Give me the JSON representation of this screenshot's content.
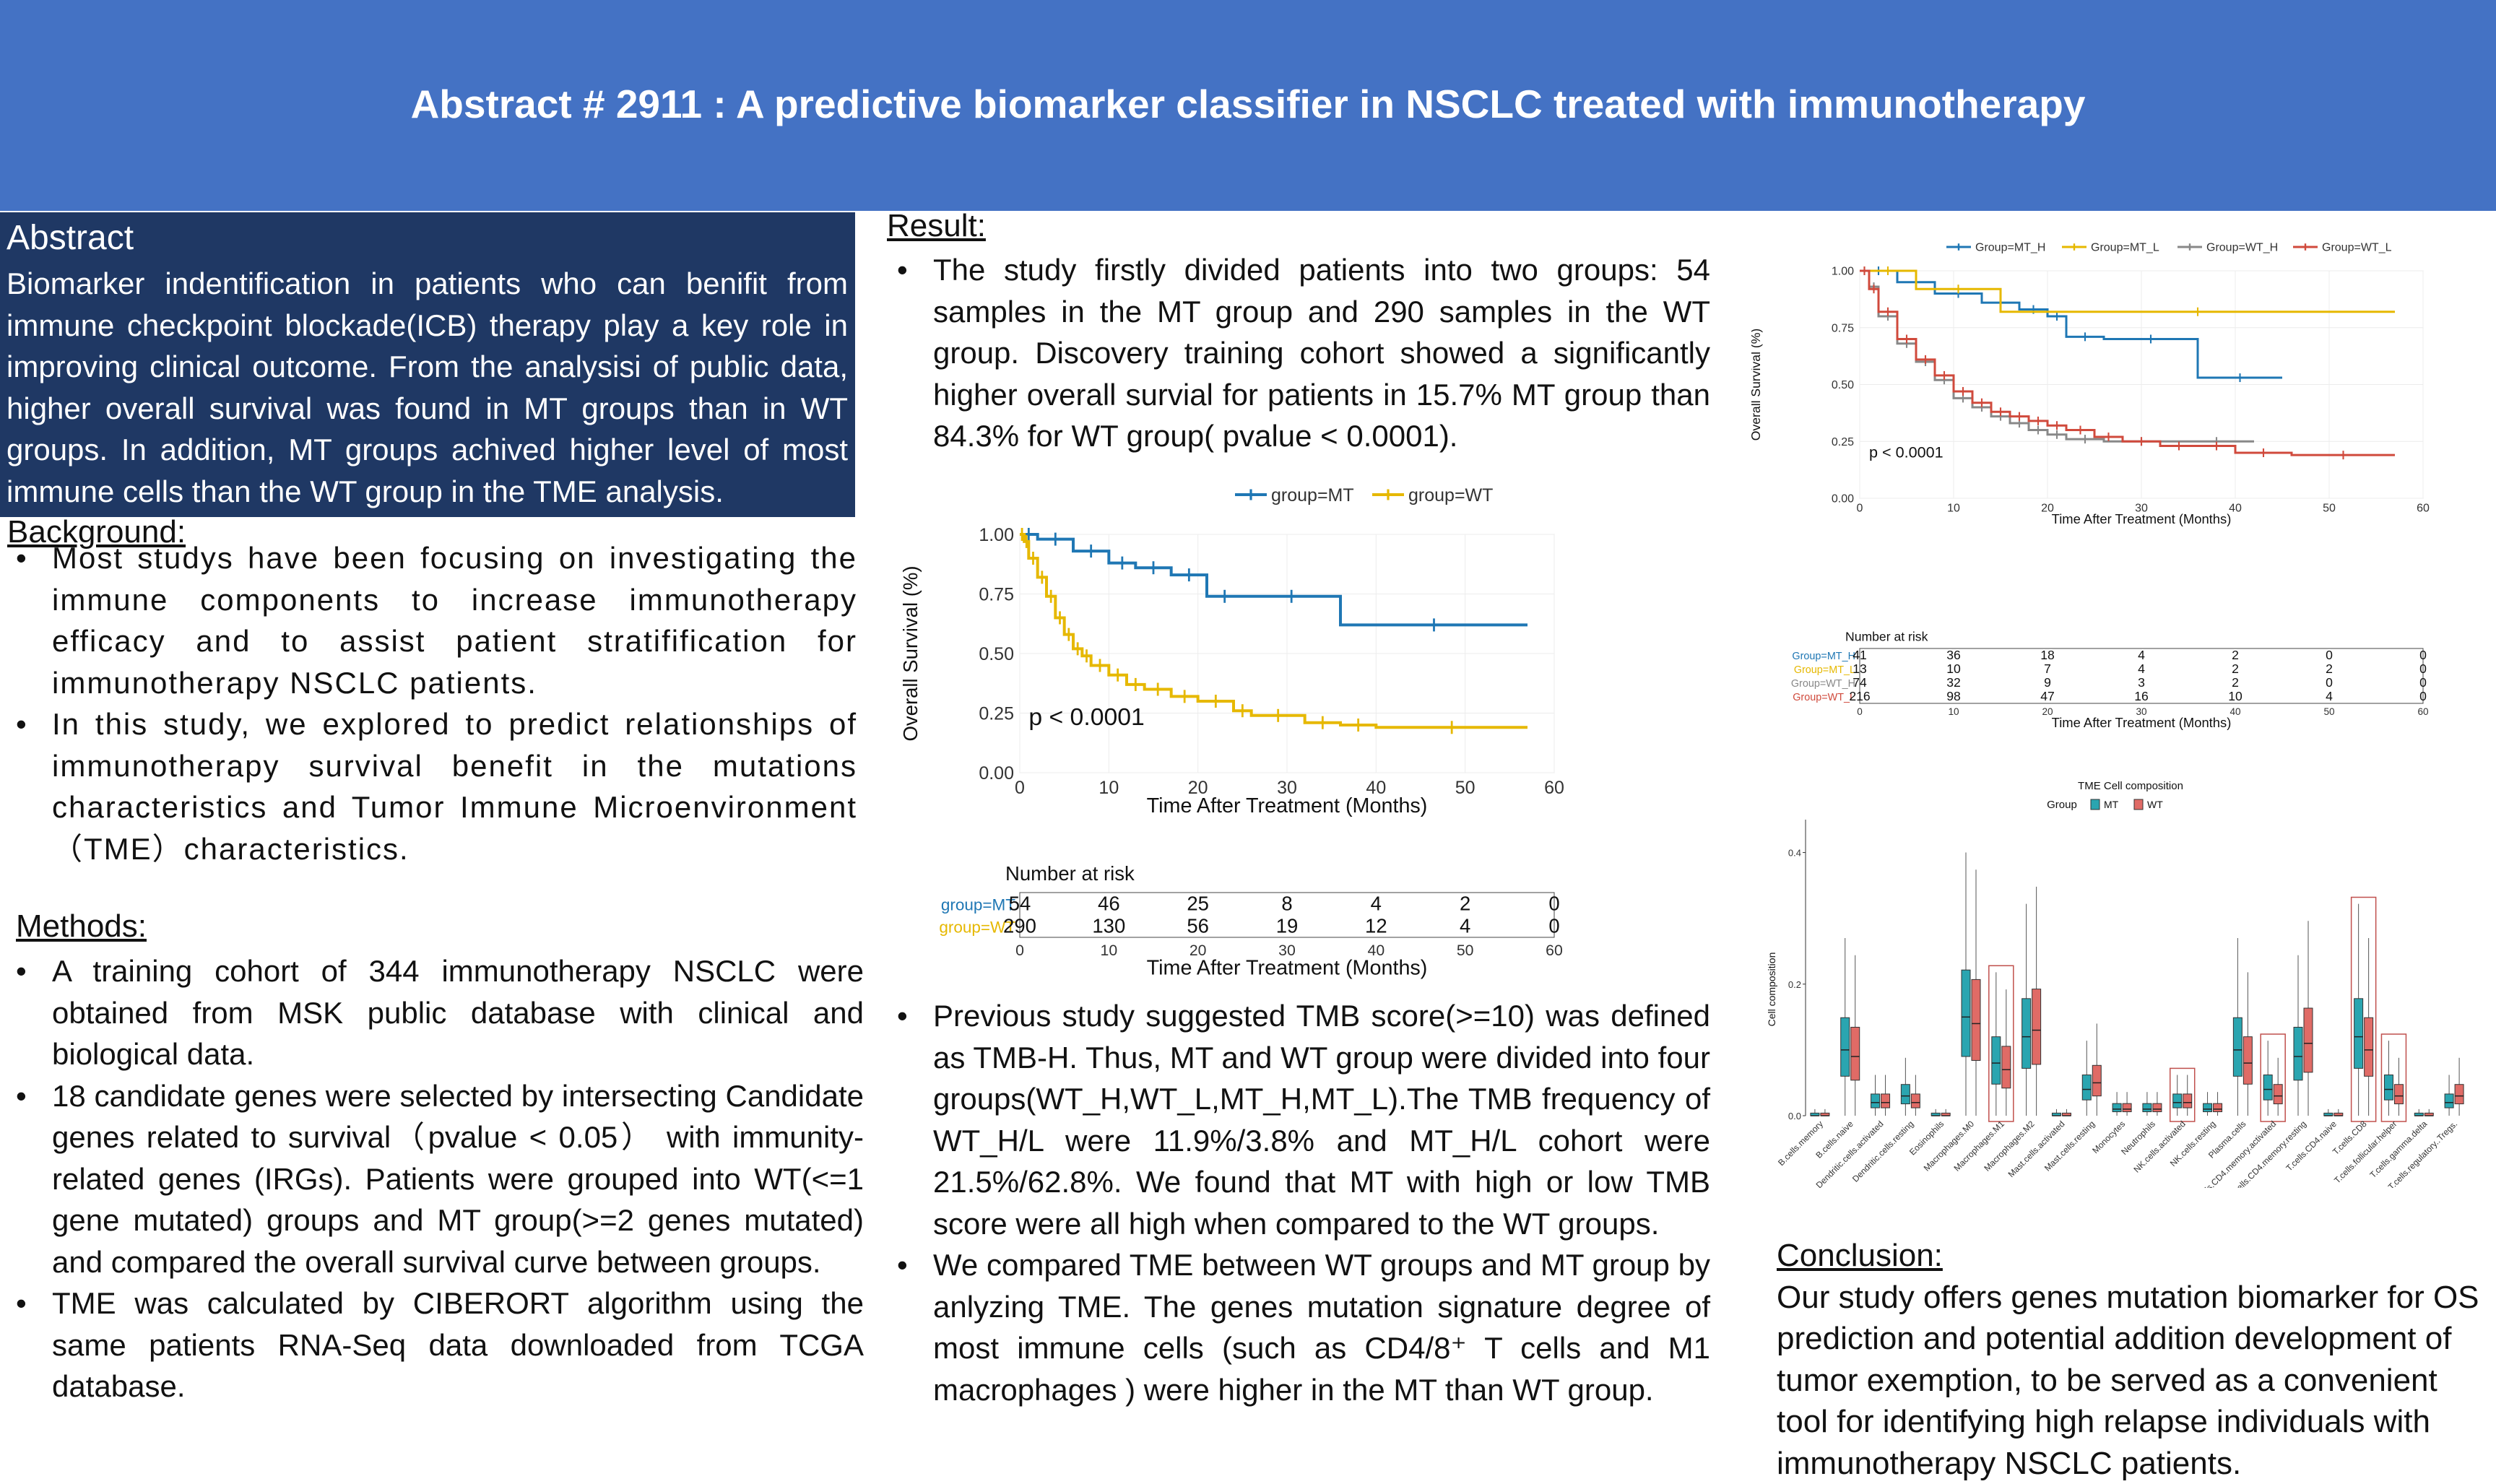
{
  "header": {
    "title": "Abstract # 2911 : A predictive biomarker classifier in NSCLC treated with immunotherapy"
  },
  "abstract": {
    "title": "Abstract",
    "body": "Biomarker indentification in patients who can benifit from immune checkpoint blockade(ICB) therapy play a key role in improving clinical outcome. From the analysisi of public data, higher overall survival was found in MT groups than in WT groups. In addition, MT groups achived higher level of most immune cells than the WT group in the TME analysis."
  },
  "background": {
    "title": "Background:",
    "items": [
      "Most studys have been focusing on investigating the immune components to increase immunotherapy efficacy and to assist patient stratifification for immunotherapy NSCLC patients.",
      "In this study, we explored to predict relationships of immunotherapy survival benefit in the mutations characteristics and Tumor Immune Microenvironment （TME）characteristics."
    ]
  },
  "methods": {
    "title": "Methods:",
    "items": [
      "A training cohort of 344 immunotherapy NSCLC were obtained from MSK public database with clinical and biological data.",
      "18 candidate genes were selected by intersecting Candidate genes related to survival（pvalue < 0.05） with immunity-related genes (IRGs). Patients were grouped into WT(<=1 gene mutated) groups and MT group(>=2 genes mutated) and compared the overall survival curve between groups.",
      "TME was calculated by CIBERORT algorithm using the same patients RNA-Seq data downloaded from TCGA database."
    ]
  },
  "result": {
    "title": "Result:",
    "items_top": [
      "The study firstly divided patients into two groups: 54 samples in the MT group and 290 samples in the WT group. Discovery training cohort showed a significantly higher overall survial for patients in 15.7% MT group than 84.3% for WT group( pvalue < 0.0001)."
    ],
    "items_bottom": [
      "Previous study suggested TMB score(>=10) was defined as TMB-H. Thus, MT and WT group were divided into four groups(WT_H,WT_L,MT_H,MT_L).The TMB frequency of WT_H/L were 11.9%/3.8% and MT_H/L cohort were 21.5%/62.8%. We found that MT with high or low TMB score were all high when compared to the WT groups.",
      " We compared TME between WT groups and MT group by anlyzing TME. The genes mutation signature degree of most immune cells (such as CD4/8⁺ T cells and M1 macrophages ) were higher in the MT  than WT group."
    ]
  },
  "conclusion": {
    "title": "Conclusion:",
    "body": "Our study offers genes mutation biomarker for OS prediction and potential addition development of tumor exemption, to be served as a convenient tool for identifying high relapse individuals with immunotherapy NSCLC patients."
  },
  "chart_data": [
    {
      "type": "line",
      "chart": "kaplan-meier",
      "xlabel": "Time After Treatment (Months)",
      "ylabel": "Overall Survival (%)",
      "xlim": [
        0,
        60
      ],
      "ylim": [
        0,
        1
      ],
      "xticks": [
        "0",
        "10",
        "20",
        "30",
        "40",
        "50",
        "60"
      ],
      "yticks": [
        "0.00",
        "0.25",
        "0.50",
        "0.75",
        "1.00"
      ],
      "legend": "top",
      "annotation": "p < 0.0001",
      "series": [
        {
          "name": "group=MT",
          "color": "#1f77b4",
          "x": [
            0,
            2,
            6,
            10,
            13,
            17,
            21,
            25,
            36,
            57
          ],
          "y": [
            1.0,
            0.98,
            0.93,
            0.88,
            0.86,
            0.83,
            0.74,
            0.74,
            0.62,
            0.62
          ]
        },
        {
          "name": "group=WT",
          "color": "#e6b800",
          "x": [
            0,
            0.5,
            1,
            2,
            3,
            4,
            5,
            6,
            7,
            8,
            10,
            12,
            14,
            17,
            20,
            24,
            26,
            32,
            36,
            40,
            57
          ],
          "y": [
            1.0,
            0.97,
            0.9,
            0.82,
            0.74,
            0.65,
            0.58,
            0.52,
            0.49,
            0.45,
            0.41,
            0.37,
            0.35,
            0.32,
            0.3,
            0.26,
            0.24,
            0.21,
            0.2,
            0.19,
            0.19
          ]
        }
      ],
      "risk_table": {
        "title": "Number at risk",
        "times": [
          "0",
          "10",
          "20",
          "30",
          "40",
          "50",
          "60"
        ],
        "rows": [
          {
            "name": "group=MT",
            "color": "#1f77b4",
            "values": [
              "54",
              "46",
              "25",
              "8",
              "4",
              "2",
              "0"
            ]
          },
          {
            "name": "group=WT",
            "color": "#e6b800",
            "values": [
              "290",
              "130",
              "56",
              "19",
              "12",
              "4",
              "0"
            ]
          }
        ]
      }
    },
    {
      "type": "line",
      "chart": "kaplan-meier",
      "xlabel": "Time After Treatment (Months)",
      "ylabel": "Overall Survival (%)",
      "xlim": [
        0,
        60
      ],
      "ylim": [
        0,
        1
      ],
      "xticks": [
        "0",
        "10",
        "20",
        "30",
        "40",
        "50",
        "60"
      ],
      "yticks": [
        "0.00",
        "0.25",
        "0.50",
        "0.75",
        "1.00"
      ],
      "legend": "top",
      "annotation": "p < 0.0001",
      "series": [
        {
          "name": "Group=MT_H",
          "color": "#1f77b4",
          "x": [
            0,
            4,
            8,
            13,
            17,
            20,
            22,
            26,
            36,
            45
          ],
          "y": [
            1.0,
            0.95,
            0.9,
            0.86,
            0.83,
            0.8,
            0.71,
            0.7,
            0.53,
            0.53
          ]
        },
        {
          "name": "Group=MT_L",
          "color": "#e6b800",
          "x": [
            0,
            6,
            15,
            57
          ],
          "y": [
            1.0,
            0.92,
            0.82,
            0.82
          ]
        },
        {
          "name": "Group=WT_H",
          "color": "#888888",
          "x": [
            0,
            1,
            2,
            4,
            6,
            8,
            10,
            12,
            14,
            16,
            18,
            20,
            22,
            26,
            34,
            42
          ],
          "y": [
            1.0,
            0.93,
            0.8,
            0.68,
            0.6,
            0.52,
            0.44,
            0.4,
            0.36,
            0.33,
            0.3,
            0.28,
            0.26,
            0.25,
            0.25,
            0.25
          ]
        },
        {
          "name": "Group=WT_L",
          "color": "#d04a3c",
          "x": [
            0,
            1,
            2,
            4,
            6,
            8,
            10,
            12,
            14,
            16,
            18,
            20,
            22,
            25,
            28,
            32,
            36,
            40,
            46,
            57
          ],
          "y": [
            1.0,
            0.92,
            0.82,
            0.7,
            0.61,
            0.54,
            0.47,
            0.42,
            0.38,
            0.36,
            0.34,
            0.32,
            0.3,
            0.27,
            0.25,
            0.23,
            0.23,
            0.2,
            0.19,
            0.19
          ]
        }
      ],
      "risk_table": {
        "title": "Number at risk",
        "times": [
          "0",
          "10",
          "20",
          "30",
          "40",
          "50",
          "60"
        ],
        "rows": [
          {
            "name": "Group=MT_H",
            "color": "#1f77b4",
            "values": [
              "41",
              "36",
              "18",
              "4",
              "2",
              "0",
              "0"
            ]
          },
          {
            "name": "Group=MT_L",
            "color": "#e6b800",
            "values": [
              "13",
              "10",
              "7",
              "4",
              "2",
              "2",
              "0"
            ]
          },
          {
            "name": "Group=WT_H",
            "color": "#888888",
            "values": [
              "74",
              "32",
              "9",
              "3",
              "2",
              "0",
              "0"
            ]
          },
          {
            "name": "Group=WT_L",
            "color": "#d04a3c",
            "values": [
              "216",
              "98",
              "47",
              "16",
              "10",
              "4",
              "0"
            ]
          }
        ]
      }
    },
    {
      "type": "box",
      "title": "TME Cell composition",
      "legend_title": "Group",
      "ylabel": "Cell composition",
      "ylim": [
        0,
        0.45
      ],
      "yticks": [
        "0.0",
        "0.2",
        "0.4"
      ],
      "series": [
        {
          "name": "MT",
          "color": "#2aa5b0"
        },
        {
          "name": "WT",
          "color": "#e06b66"
        }
      ],
      "categories": [
        "B.cells.memory",
        "B.cells.naive",
        "Dendritic.cells.activated",
        "Dendritic.cells.resting",
        "Eosinophils",
        "Macrophages.M0",
        "Macrophages.M1",
        "Macrophages.M2",
        "Mast.cells.activated",
        "Mast.cells.resting",
        "Monocytes",
        "Neutrophils",
        "NK.cells.activated",
        "NK.cells.resting",
        "Plasma.cells",
        "T.cells.CD4.memory.activated",
        "T.cells.CD4.memory.resting",
        "T.cells.CD4.naive",
        "T.cells.CD8",
        "T.cells.follicular.helper",
        "T.cells.gamma.delta",
        "T.cells.regulatory..Tregs."
      ],
      "medians_MT": [
        0.0,
        0.1,
        0.02,
        0.03,
        0.0,
        0.15,
        0.08,
        0.12,
        0.0,
        0.04,
        0.01,
        0.01,
        0.02,
        0.01,
        0.1,
        0.04,
        0.09,
        0.0,
        0.12,
        0.04,
        0.0,
        0.02
      ],
      "medians_WT": [
        0.0,
        0.09,
        0.02,
        0.02,
        0.0,
        0.14,
        0.07,
        0.13,
        0.0,
        0.05,
        0.01,
        0.01,
        0.02,
        0.01,
        0.08,
        0.03,
        0.11,
        0.0,
        0.1,
        0.03,
        0.0,
        0.03
      ],
      "highlighted": [
        "Macrophages.M1",
        "NK.cells.activated",
        "T.cells.CD4.memory.activated",
        "T.cells.CD8",
        "T.cells.follicular.helper"
      ]
    }
  ]
}
